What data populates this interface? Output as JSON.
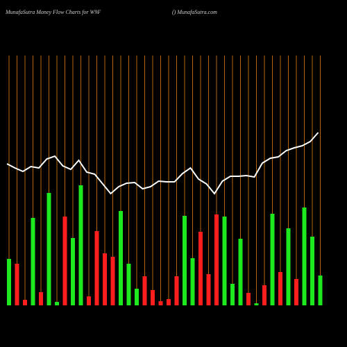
{
  "chart_data": {
    "type": "bar",
    "title": "MunafaSutra  Money Flow  Charts for W9F",
    "subtitle": "() MunafaSutra.com",
    "categories": [
      null,
      null,
      null,
      null,
      null,
      null,
      null,
      null,
      null,
      null,
      null,
      null,
      null,
      null,
      null,
      null,
      null,
      null,
      null,
      null,
      null,
      null,
      null,
      null,
      null,
      null,
      null,
      null,
      null,
      null,
      null,
      null,
      null,
      null,
      null,
      null,
      null,
      null,
      null,
      null
    ],
    "values": [
      67,
      60,
      8,
      126,
      19,
      162,
      5,
      128,
      97,
      173,
      13,
      107,
      75,
      70,
      136,
      60,
      24,
      42,
      22,
      6,
      9,
      42,
      129,
      68,
      106,
      45,
      131,
      128,
      31,
      96,
      18,
      3,
      29,
      132,
      48,
      111,
      38,
      141,
      99,
      43
    ],
    "bar_colors": [
      "#1ee81e",
      "#ff1e1e",
      "#ff1e1e",
      "#1ee81e",
      "#ff1e1e",
      "#1ee81e",
      "#1ee81e",
      "#ff1e1e",
      "#1ee81e",
      "#1ee81e",
      "#ff1e1e",
      "#ff1e1e",
      "#ff1e1e",
      "#ff1e1e",
      "#1ee81e",
      "#1ee81e",
      "#1ee81e",
      "#ff1e1e",
      "#ff1e1e",
      "#ff1e1e",
      "#ff1e1e",
      "#ff1e1e",
      "#1ee81e",
      "#1ee81e",
      "#ff1e1e",
      "#ff1e1e",
      "#ff1e1e",
      "#1ee81e",
      "#1ee81e",
      "#1ee81e",
      "#ff1e1e",
      "#1ee81e",
      "#ff1e1e",
      "#1ee81e",
      "#ff1e1e",
      "#1ee81e",
      "#ff1e1e",
      "#1ee81e",
      "#1ee81e",
      "#1ee81e"
    ],
    "line_values": [
      204,
      198,
      193,
      200,
      198,
      211,
      215,
      201,
      196,
      209,
      192,
      189,
      175,
      161,
      171,
      176,
      177,
      168,
      171,
      179,
      178,
      178,
      190,
      198,
      182,
      175,
      161,
      179,
      186,
      186,
      187,
      185,
      205,
      212,
      214,
      223,
      227,
      230,
      236,
      249
    ],
    "line_color": "#ffffff",
    "grid_color": "#b8650e",
    "ylim": [
      0,
      360
    ]
  }
}
